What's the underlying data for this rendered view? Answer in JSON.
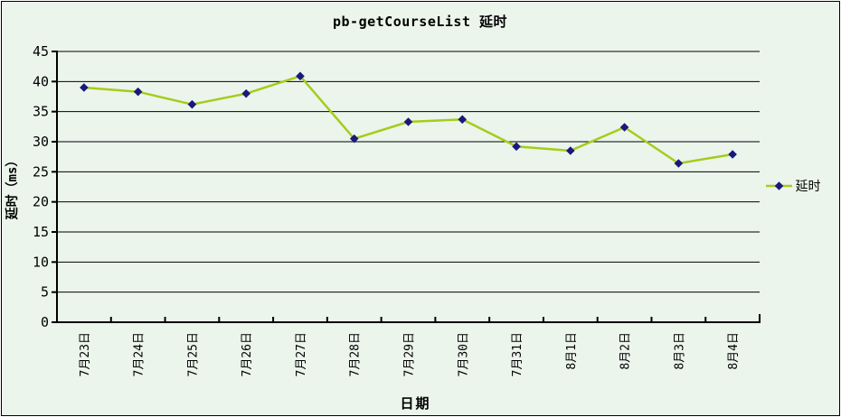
{
  "frame": {
    "background": "#ebf5ec",
    "border_color": "#000000"
  },
  "chart_data": {
    "type": "line",
    "title": "pb-getCourseList 延时",
    "xlabel": "日期",
    "ylabel": "延时（ms）",
    "categories": [
      "7月23日",
      "7月24日",
      "7月25日",
      "7月26日",
      "7月27日",
      "7月28日",
      "7月29日",
      "7月30日",
      "7月31日",
      "8月1日",
      "8月2日",
      "8月3日",
      "8月4日"
    ],
    "series": [
      {
        "name": "延时",
        "values": [
          39,
          38.3,
          36.2,
          38,
          40.9,
          30.5,
          33.3,
          33.7,
          29.2,
          28.5,
          32.4,
          26.4,
          27.9
        ],
        "line_color": "#a6cc1a",
        "marker_color": "#19197d",
        "marker": "diamond"
      }
    ],
    "ylim": [
      0,
      45
    ],
    "yticks": [
      0,
      5,
      10,
      15,
      20,
      25,
      30,
      35,
      40,
      45
    ],
    "grid": "horizontal",
    "grid_color": "#000000",
    "axis_color": "#000000",
    "legend": {
      "position": "right",
      "label": "延时"
    }
  }
}
